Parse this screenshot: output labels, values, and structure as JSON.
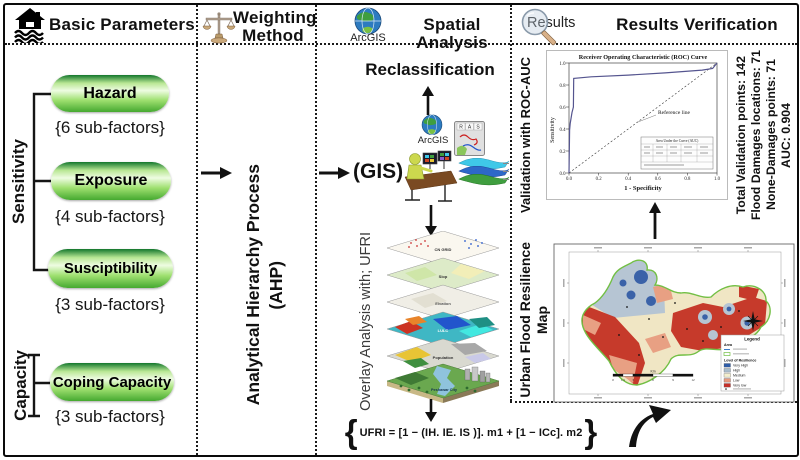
{
  "basic_parameters": {
    "title": "Basic Parameters",
    "sensitivity_label": "Sensitivity",
    "capacity_label": "Capacity",
    "factors": [
      {
        "name": "Hazard",
        "sub": "{6 sub-factors}"
      },
      {
        "name": "Exposure",
        "sub": "{4 sub-factors}"
      },
      {
        "name": "Susciptibility",
        "sub": "{3 sub-factors}"
      },
      {
        "name": "Coping Capacity",
        "sub": "{3 sub-factors}"
      }
    ]
  },
  "weighting_method": {
    "title_line1": "Weighting",
    "title_line2": "Method",
    "process_line1": "Analytical Hierarchy Process",
    "process_line2": "(AHP)"
  },
  "spatial_analysis": {
    "title": "Spatial Analysis",
    "arcgis_label": "ArcGIS",
    "arcgis_small_label": "ArcGIS",
    "ras_letters": [
      "R",
      "A",
      "S"
    ],
    "reclassification_label": "Reclassification",
    "gis_label": "(GIS)",
    "overlay_label": "Overlay Analysis with; UFRI",
    "layers": [
      "CN GRID",
      "Slop",
      "Elvation",
      "LULC",
      "Population"
    ],
    "city_label": "Peshawar City",
    "formula_open": "{",
    "formula_body": "UFRI = [1 − (IH. IE. IS )]. m1 + [1 − ICc]. m2",
    "formula_close": "}"
  },
  "results_verification": {
    "title": "Results Verification",
    "results_icon_label": "Results",
    "roc_label": "Validation with ROC-AUC",
    "stats": [
      "Total Validation points: 142",
      "Flood Damages locations: 71",
      "None-Damages points: 71",
      "AUC: 0.904"
    ],
    "map_label_line1": "Urban Flood Resilience",
    "map_label_line2": "Map",
    "map": {
      "legend_title": "Legend",
      "area_title": "Area",
      "resilience_title": "Level of Resilience",
      "classes": [
        {
          "label": "Very High",
          "color": "#2f5da8"
        },
        {
          "label": "High",
          "color": "#a9bccb"
        },
        {
          "label": "Medium",
          "color": "#f3eecd"
        },
        {
          "label": "Low",
          "color": "#e79b80"
        },
        {
          "label": "Very low",
          "color": "#c6302a"
        }
      ],
      "scale_ticks": [
        "0",
        "1.5",
        "3",
        "6",
        "9",
        "12"
      ],
      "scale_unit": "Km"
    }
  },
  "chart_data": {
    "type": "line",
    "title": "Receiver Operating Characteristic (ROC) Curve",
    "xlabel": "1 - Specificity",
    "ylabel": "Sensitivity",
    "xlim": [
      0,
      1
    ],
    "ylim": [
      0,
      1
    ],
    "xticks": [
      "0.0",
      "0.2",
      "0.4",
      "0.6",
      "0.8",
      "1.0"
    ],
    "yticks": [
      "0.0",
      "0.2",
      "0.4",
      "0.6",
      "0.8",
      "1.0"
    ],
    "grid": false,
    "legend_position": "none",
    "series": [
      {
        "name": "ROC curve",
        "color": "#55558f",
        "x": [
          0,
          0.004,
          0.008,
          0.02,
          0.03,
          0.032,
          0.15,
          0.4,
          0.65,
          0.9,
          0.97,
          1.0
        ],
        "y": [
          0,
          0.39,
          0.45,
          0.55,
          0.6,
          0.86,
          0.875,
          0.89,
          0.91,
          0.935,
          0.95,
          1.0
        ]
      },
      {
        "name": "Reference line",
        "color": "#333333",
        "style": "dashed",
        "x": [
          0,
          1
        ],
        "y": [
          0,
          1
        ]
      }
    ],
    "annotation": "Reference line",
    "inset_table_title": "Area Under the Curve (AUC)",
    "auc": 0.904
  }
}
